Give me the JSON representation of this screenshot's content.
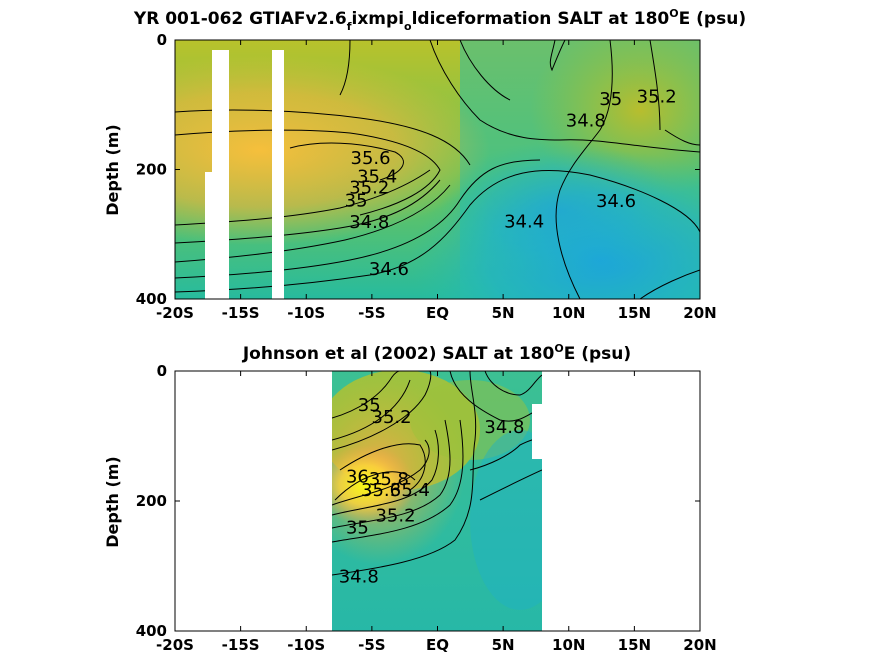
{
  "chart_data": [
    {
      "type": "contour",
      "title": "YR 001-062 GTIAFv2.6_f ixmpi_o ldiceformation SALT at 180°E (psu)",
      "title_parts": [
        "YR 001-062 GTIAFv2.6",
        "f",
        "ixmpi",
        "o",
        "ldiceformation SALT at 180",
        "O",
        "E (psu)"
      ],
      "ylabel": "Depth (m)",
      "xlim": [
        -20,
        20
      ],
      "ylim": [
        400,
        0
      ],
      "x_ticks": [
        -20,
        -15,
        -10,
        -5,
        0,
        5,
        10,
        15,
        20
      ],
      "x_tick_labels": [
        "-20S",
        "-15S",
        "-10S",
        "-5S",
        "EQ",
        "5N",
        "10N",
        "15N",
        "20N"
      ],
      "y_ticks": [
        0,
        200,
        400
      ],
      "y_tick_labels": [
        "0",
        "200",
        "400"
      ],
      "colormap": "parula",
      "color_range": [
        34.2,
        36.0
      ],
      "missing_data_x_ranges": [
        [
          -17.9,
          -17.4,
          200,
          400
        ],
        [
          -17.4,
          -16.7,
          15,
          400
        ],
        [
          -12.2,
          -11.4,
          15,
          400
        ]
      ],
      "contour_labels": [
        {
          "text": "35.6",
          "x": -5.1,
          "y": 182
        },
        {
          "text": "35.4",
          "x": -4.6,
          "y": 211
        },
        {
          "text": "35.2",
          "x": -5.2,
          "y": 228
        },
        {
          "text": "35",
          "x": -6.2,
          "y": 248
        },
        {
          "text": "34.8",
          "x": -5.2,
          "y": 281
        },
        {
          "text": "34.6",
          "x": -3.7,
          "y": 354
        },
        {
          "text": "34.4",
          "x": 6.6,
          "y": 280
        },
        {
          "text": "34.6",
          "x": 13.6,
          "y": 249
        },
        {
          "text": "34.8",
          "x": 11.3,
          "y": 124
        },
        {
          "text": "35",
          "x": 13.2,
          "y": 91
        },
        {
          "text": "35.2",
          "x": 16.7,
          "y": 87
        }
      ]
    },
    {
      "type": "contour",
      "title": "Johnson et al (2002) SALT at 180°E (psu)",
      "title_parts": [
        "Johnson et al (2002) SALT at 180",
        "O",
        "E (psu)"
      ],
      "ylabel": "Depth (m)",
      "xlim": [
        -20,
        20
      ],
      "ylim": [
        400,
        0
      ],
      "data_x_range": [
        -8,
        8
      ],
      "x_ticks": [
        -20,
        -15,
        -10,
        -5,
        0,
        5,
        10,
        15,
        20
      ],
      "x_tick_labels": [
        "-20S",
        "-15S",
        "-10S",
        "-5S",
        "EQ",
        "5N",
        "10N",
        "15N",
        "20N"
      ],
      "y_ticks": [
        0,
        200,
        400
      ],
      "y_tick_labels": [
        "0",
        "200",
        "400"
      ],
      "colormap": "parula",
      "color_range": [
        34.2,
        36.0
      ],
      "contour_labels": [
        {
          "text": "35",
          "x": -5.2,
          "y": 52
        },
        {
          "text": "35.2",
          "x": -3.5,
          "y": 71
        },
        {
          "text": "34.8",
          "x": 5.1,
          "y": 86
        },
        {
          "text": "36",
          "x": -6.1,
          "y": 162
        },
        {
          "text": "35.8",
          "x": -3.7,
          "y": 166
        },
        {
          "text": "35.4",
          "x": -2.1,
          "y": 183
        },
        {
          "text": "35.6",
          "x": -4.3,
          "y": 183
        },
        {
          "text": "35.2",
          "x": -3.2,
          "y": 222
        },
        {
          "text": "35",
          "x": -6.1,
          "y": 241
        },
        {
          "text": "34.8",
          "x": -6.0,
          "y": 316
        }
      ]
    }
  ]
}
